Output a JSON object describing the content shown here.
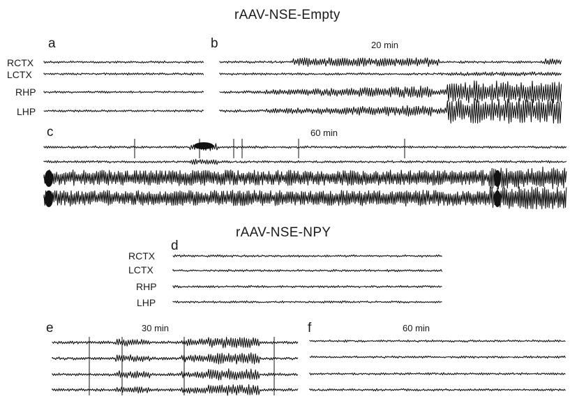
{
  "titles": {
    "empty": "rAAV-NSE-Empty",
    "npy": "rAAV-NSE-NPY"
  },
  "panels": {
    "a": "a",
    "b": "b",
    "c": "c",
    "d": "d",
    "e": "e",
    "f": "f"
  },
  "durations": {
    "b": "20 min",
    "c": "60 min",
    "e": "30 min",
    "f": "60 min"
  },
  "channels": [
    "RCTX",
    "LCTX",
    "RHP",
    "LHP"
  ],
  "trace_color": "#111111"
}
